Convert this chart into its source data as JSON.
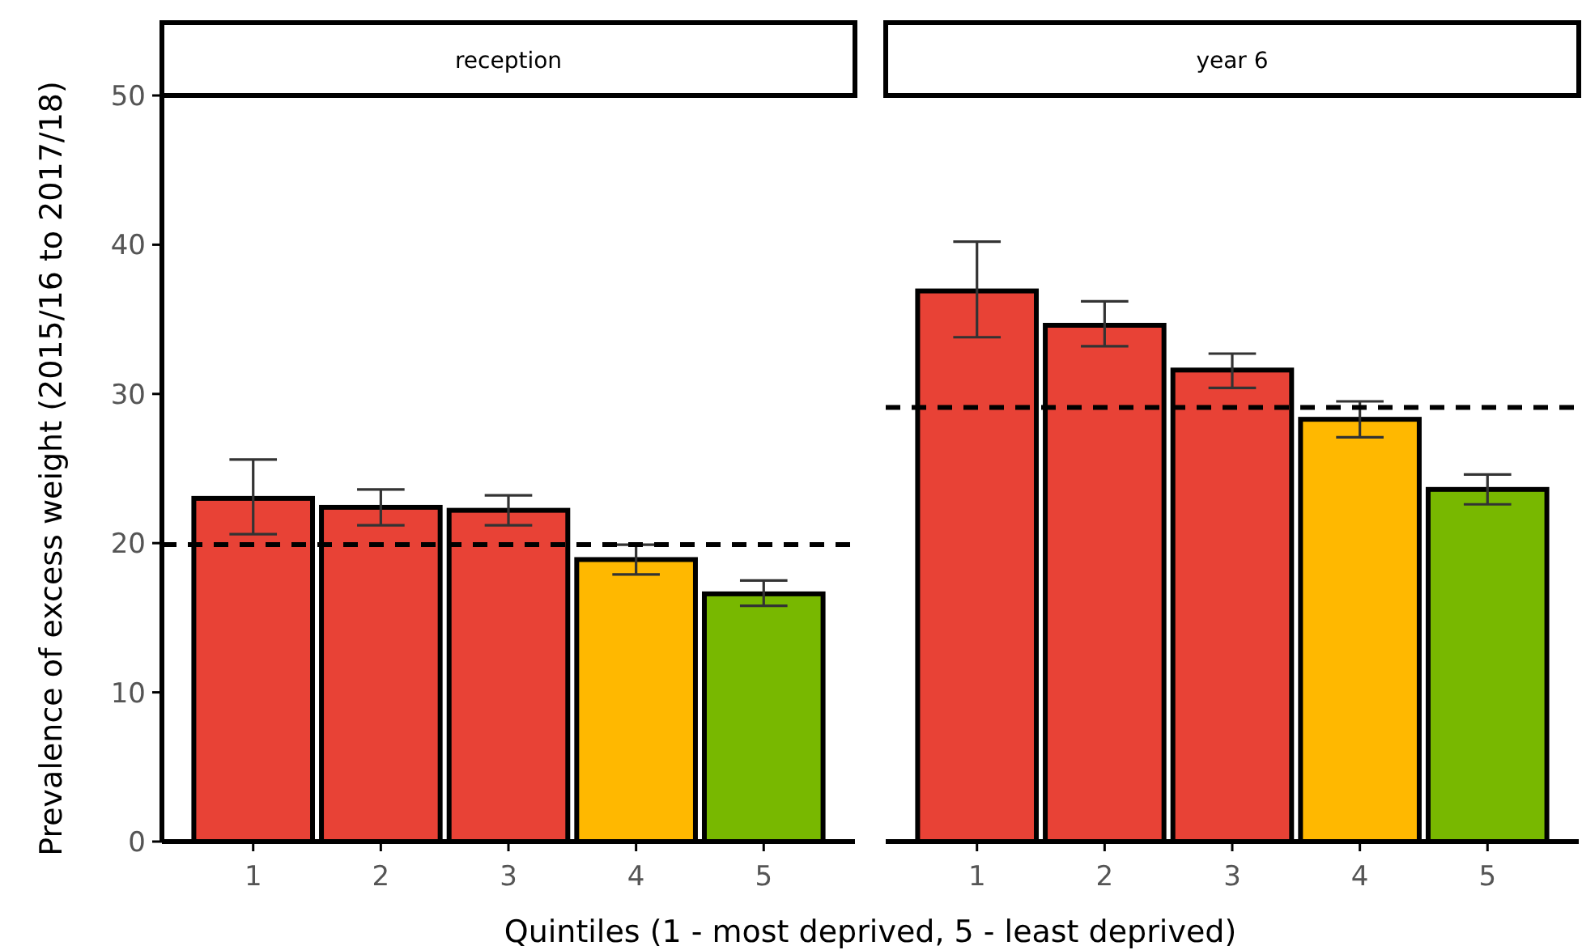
{
  "chart_data": [
    {
      "type": "bar",
      "title": "reception",
      "ylabel": "Prevalence of excess weight (2015/16 to 2017/18)",
      "xlabel": "Quintiles (1 - most deprived, 5 - least deprived)",
      "categories": [
        "1",
        "2",
        "3",
        "4",
        "5"
      ],
      "values": [
        23.0,
        22.4,
        22.2,
        18.9,
        16.6
      ],
      "colors": [
        "#e84236",
        "#e84236",
        "#e84236",
        "#ffb800",
        "#78b800"
      ],
      "errors": [
        [
          20.6,
          25.6
        ],
        [
          21.2,
          23.6
        ],
        [
          21.2,
          23.2
        ],
        [
          17.9,
          19.9
        ],
        [
          15.8,
          17.5
        ]
      ],
      "ylim": [
        0,
        50
      ],
      "yticks": [
        0,
        10,
        20,
        30,
        40,
        50
      ],
      "ref_lines": [
        {
          "axis": "y",
          "value": 19.9,
          "line_style": "dashed"
        }
      ]
    },
    {
      "type": "bar",
      "title": "year 6",
      "categories": [
        "1",
        "2",
        "3",
        "4",
        "5"
      ],
      "values": [
        36.9,
        34.6,
        31.6,
        28.3,
        23.6
      ],
      "colors": [
        "#e84236",
        "#e84236",
        "#e84236",
        "#ffb800",
        "#78b800"
      ],
      "errors": [
        [
          33.8,
          40.2
        ],
        [
          33.2,
          36.2
        ],
        [
          30.4,
          32.7
        ],
        [
          27.1,
          29.5
        ],
        [
          22.6,
          24.6
        ]
      ],
      "ylim": [
        0,
        50
      ],
      "tick_labels": "x",
      "ref_lines": [
        {
          "axis": "y",
          "value": 29.1,
          "line_style": "dashed"
        }
      ]
    }
  ]
}
